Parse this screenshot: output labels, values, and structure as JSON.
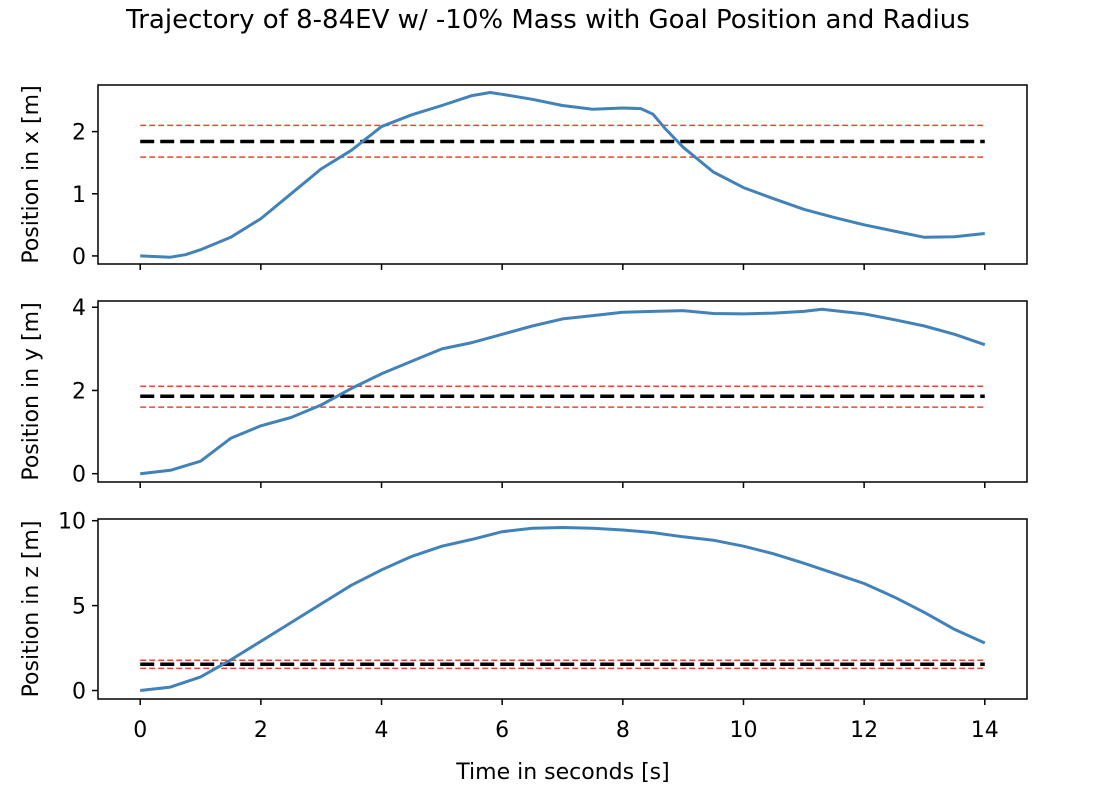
{
  "chart_data": {
    "title": "Trajectory of 8-84EV w/ -10% Mass with Goal Position and Radius",
    "xlabel": "Time in seconds [s]",
    "xlim": [
      -0.7,
      14.7
    ],
    "xticks": [
      0,
      2,
      4,
      6,
      8,
      10,
      12,
      14
    ],
    "colors": {
      "trajectory": "#4282b9",
      "goal": "#000000",
      "radius": "#e24a33"
    },
    "subplots": [
      {
        "type": "line",
        "ylabel": "Position in x [m]",
        "ylim": [
          -0.13,
          2.75
        ],
        "yticks": [
          0,
          1,
          2
        ],
        "goal": 1.84,
        "radius_upper": 2.1,
        "radius_lower": 1.59,
        "series": [
          {
            "x": [
              0,
              0.5,
              0.75,
              1,
              1.5,
              2,
              2.5,
              3,
              3.5,
              4,
              4.5,
              5,
              5.5,
              5.8,
              6,
              6.5,
              7,
              7.5,
              8,
              8.3,
              8.5,
              8.7,
              9,
              9.5,
              10,
              10.5,
              11,
              11.5,
              12,
              12.5,
              13,
              13.5,
              14
            ],
            "y": [
              0,
              -0.02,
              0.02,
              0.1,
              0.3,
              0.6,
              1.0,
              1.4,
              1.7,
              2.08,
              2.27,
              2.42,
              2.58,
              2.63,
              2.6,
              2.52,
              2.42,
              2.36,
              2.38,
              2.37,
              2.28,
              2.05,
              1.75,
              1.35,
              1.1,
              0.92,
              0.75,
              0.62,
              0.5,
              0.4,
              0.3,
              0.31,
              0.36
            ]
          }
        ]
      },
      {
        "type": "line",
        "ylabel": "Position in y [m]",
        "ylim": [
          -0.2,
          4.15
        ],
        "yticks": [
          0,
          2,
          4
        ],
        "goal": 1.86,
        "radius_upper": 2.1,
        "radius_lower": 1.6,
        "series": [
          {
            "x": [
              0,
              0.5,
              1,
              1.5,
              2,
              2.5,
              3,
              3.5,
              4,
              4.5,
              5,
              5.5,
              6,
              6.5,
              7,
              7.5,
              8,
              8.5,
              9,
              9.5,
              10,
              10.5,
              11,
              11.3,
              11.5,
              12,
              12.5,
              13,
              13.5,
              14
            ],
            "y": [
              0,
              0.08,
              0.3,
              0.85,
              1.15,
              1.35,
              1.65,
              2.05,
              2.4,
              2.7,
              3.0,
              3.15,
              3.35,
              3.55,
              3.72,
              3.8,
              3.88,
              3.9,
              3.92,
              3.85,
              3.84,
              3.86,
              3.9,
              3.95,
              3.92,
              3.84,
              3.7,
              3.55,
              3.35,
              3.1
            ]
          }
        ]
      },
      {
        "type": "line",
        "ylabel": "Position in z [m]",
        "ylim": [
          -0.5,
          10.1
        ],
        "yticks": [
          0,
          5,
          10
        ],
        "goal": 1.55,
        "radius_upper": 1.78,
        "radius_lower": 1.3,
        "series": [
          {
            "x": [
              0,
              0.5,
              1,
              1.5,
              2,
              2.5,
              3,
              3.5,
              4,
              4.5,
              5,
              5.5,
              6,
              6.5,
              7,
              7.5,
              8,
              8.5,
              9,
              9.5,
              10,
              10.5,
              11,
              11.5,
              12,
              12.5,
              13,
              13.5,
              14
            ],
            "y": [
              0,
              0.2,
              0.8,
              1.8,
              2.9,
              4.0,
              5.1,
              6.2,
              7.1,
              7.9,
              8.5,
              8.9,
              9.35,
              9.55,
              9.6,
              9.55,
              9.45,
              9.3,
              9.05,
              8.85,
              8.5,
              8.05,
              7.5,
              6.9,
              6.3,
              5.5,
              4.6,
              3.6,
              2.8
            ]
          }
        ]
      }
    ]
  }
}
